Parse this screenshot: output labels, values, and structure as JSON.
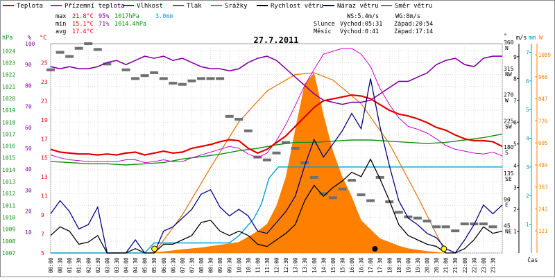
{
  "legend": [
    {
      "label": "Teplota",
      "color": "#e00000"
    },
    {
      "label": "Přízemní teplota",
      "color": "#d000d0"
    },
    {
      "label": "Vlhkost",
      "color": "#8000a0"
    },
    {
      "label": "Tlak",
      "color": "#109010"
    },
    {
      "label": "Srážky",
      "color": "#00a0d0"
    },
    {
      "label": "Rychlost větru",
      "color": "#000000"
    },
    {
      "label": "Náraz větru",
      "color": "#000080"
    },
    {
      "label": "Směr větru",
      "color": "#707070"
    }
  ],
  "stats": {
    "max": {
      "label": "max",
      "temp": "21.8°C",
      "hum": "95%",
      "press": "1017hPa",
      "rain": "3.0mm"
    },
    "min": {
      "label": "min",
      "temp": "15.1°C",
      "hum": "71%",
      "press": "1014.4hPa"
    },
    "avg": {
      "label": "avg",
      "temp": "17.4°C"
    }
  },
  "wind_info": {
    "ws": "WS:5.4m/s",
    "wg": "WG:8m/s"
  },
  "sun": {
    "label": "Slunce",
    "rise": "Východ:05:31",
    "set": "Západ:20:54"
  },
  "moon": {
    "label": "Měsíc",
    "rise": "Východ:0:41",
    "set": "Západ:17:14"
  },
  "title": "27.7.2011",
  "time_axis_label": "čas",
  "colors": {
    "temp": "#e00000",
    "ground": "#d000d0",
    "hum": "#8000a0",
    "press": "#109010",
    "rain": "#00a0d0",
    "wind": "#000000",
    "gust": "#000080",
    "dir": "#707070",
    "solar": "#ff8000",
    "solar_curve": "#e07000"
  },
  "chart_data": {
    "type": "line",
    "title": "27.7.2011",
    "x_unit": "hour",
    "xlim": [
      0,
      24
    ],
    "x_ticks": [
      "00:00",
      "00:30",
      "01:00",
      "01:30",
      "02:00",
      "02:30",
      "03:00",
      "03:30",
      "04:00",
      "04:30",
      "05:00",
      "05:30",
      "06:00",
      "06:30",
      "07:00",
      "07:30",
      "08:00",
      "08:30",
      "09:00",
      "09:30",
      "10:00",
      "10:30",
      "11:00",
      "11:30",
      "12:00",
      "12:30",
      "13:00",
      "13:30",
      "14:00",
      "14:30",
      "15:00",
      "15:30",
      "16:00",
      "16:30",
      "17:00",
      "17:30",
      "18:00",
      "18:30",
      "19:00",
      "19:30",
      "20:00",
      "20:30",
      "21:00",
      "21:30",
      "22:00",
      "22:30",
      "23:00",
      "23:30"
    ],
    "axes": {
      "hpa": {
        "label": "hPa",
        "ticks": [
          1024,
          1023,
          1022,
          1021,
          1020,
          1019,
          1018,
          1017,
          1016,
          1015,
          1014,
          1013,
          1012,
          1011,
          1010,
          1009,
          1008,
          1007
        ],
        "range": [
          1007,
          1024.6
        ]
      },
      "percent": {
        "label": "%",
        "ticks": [
          100,
          90,
          80,
          70,
          60,
          50,
          40,
          30,
          20,
          10
        ],
        "range": [
          0,
          100
        ]
      },
      "celsius": {
        "label": "°C",
        "ticks": [
          25,
          23,
          21,
          19,
          17,
          15,
          13,
          11,
          9,
          7,
          5
        ],
        "range": [
          5,
          27
        ]
      },
      "direction": {
        "label": "°",
        "ticks": [
          "360 N",
          "315 NW",
          "270 W",
          "225 SW",
          "180 S",
          "135 SE",
          "90 E",
          "45 NE"
        ],
        "range": [
          0,
          360
        ]
      },
      "ms": {
        "label": "m/s",
        "ticks": [
          9,
          8,
          7,
          6,
          5,
          4,
          3,
          2,
          1
        ],
        "range": [
          0,
          9.6
        ]
      },
      "rain_mm": {
        "label": "mm",
        "ticks": [
          7,
          6,
          5,
          4,
          3,
          2,
          1
        ],
        "range": [
          0,
          7.3
        ]
      },
      "solar_w": {
        "label": "W",
        "ticks": [
          1089,
          968,
          847,
          726,
          605,
          484,
          363,
          242,
          121
        ],
        "range": [
          0,
          1150
        ]
      }
    },
    "series": [
      {
        "name": "Teplota",
        "axis": "celsius",
        "x": [
          0,
          0.5,
          1,
          1.5,
          2,
          2.5,
          3,
          3.5,
          4,
          4.5,
          5,
          5.5,
          6,
          6.5,
          7,
          7.5,
          8,
          8.5,
          9,
          9.5,
          10,
          10.5,
          11,
          11.5,
          12,
          12.5,
          13,
          13.5,
          14,
          14.5,
          15,
          15.5,
          16,
          16.5,
          17,
          17.5,
          18,
          18.5,
          19,
          19.5,
          20,
          20.5,
          21,
          21.5,
          22,
          22.5,
          23,
          23.5,
          24
        ],
        "y": [
          15.9,
          15.6,
          15.5,
          15.4,
          15.4,
          15.3,
          15.4,
          15.3,
          15.5,
          15.6,
          15.3,
          15.5,
          15.7,
          15.5,
          15.6,
          16.0,
          16.2,
          16.4,
          16.7,
          16.9,
          16.8,
          16.0,
          15.5,
          15.9,
          16.6,
          17.3,
          18.3,
          19.3,
          20.3,
          21.0,
          21.2,
          21.4,
          21.6,
          21.5,
          21.2,
          20.6,
          20.0,
          19.6,
          19.4,
          19.1,
          18.7,
          18.2,
          17.9,
          17.4,
          17.0,
          16.8,
          16.8,
          16.7,
          16.2
        ]
      },
      {
        "name": "Přízemní teplota",
        "axis": "celsius",
        "x": [
          0,
          0.5,
          1,
          1.5,
          2,
          2.5,
          3,
          3.5,
          4,
          4.5,
          5,
          5.5,
          6,
          6.5,
          7,
          7.5,
          8,
          8.5,
          9,
          9.5,
          10,
          10.5,
          11,
          11.5,
          12,
          12.5,
          13,
          13.5,
          14,
          14.5,
          15,
          15.5,
          16,
          16.5,
          17,
          17.5,
          18,
          18.5,
          19,
          19.5,
          20,
          20.5,
          21,
          21.5,
          22,
          22.5,
          23,
          23.5,
          24
        ],
        "y": [
          15.3,
          15.0,
          14.8,
          14.7,
          14.6,
          14.6,
          14.6,
          14.6,
          14.8,
          14.8,
          14.5,
          14.6,
          14.8,
          14.6,
          14.6,
          15.0,
          15.3,
          15.6,
          15.9,
          16.2,
          16.0,
          15.4,
          15.0,
          15.5,
          16.8,
          18.5,
          20.5,
          22.6,
          24.3,
          25.9,
          26.2,
          26.5,
          26.5,
          25.9,
          24.6,
          22.3,
          20.6,
          19.2,
          18.3,
          18.0,
          17.6,
          17.0,
          16.3,
          15.9,
          15.7,
          15.5,
          15.4,
          15.6,
          15.2
        ]
      },
      {
        "name": "Vlhkost",
        "axis": "percent",
        "x": [
          0,
          0.5,
          1,
          1.5,
          2,
          2.5,
          3,
          3.5,
          4,
          4.5,
          5,
          5.5,
          6,
          6.5,
          7,
          7.5,
          8,
          8.5,
          9,
          9.5,
          10,
          10.5,
          11,
          11.5,
          12,
          12.5,
          13,
          13.5,
          14,
          14.5,
          15,
          15.5,
          16,
          16.5,
          17,
          17.5,
          18,
          18.5,
          19,
          19.5,
          20,
          20.5,
          21,
          21.5,
          22,
          22.5,
          23,
          23.5,
          24
        ],
        "y": [
          89,
          88,
          89,
          88,
          88,
          89,
          91,
          92,
          90,
          92,
          94,
          93,
          94,
          92,
          93,
          91,
          89,
          88,
          88,
          87,
          88,
          91,
          93,
          94,
          92,
          88,
          84,
          80,
          76,
          73,
          72,
          71,
          72,
          72,
          73,
          76,
          79,
          82,
          82,
          84,
          86,
          90,
          92,
          93,
          90,
          89,
          93,
          94,
          94
        ]
      },
      {
        "name": "Tlak",
        "axis": "hpa",
        "x": [
          0,
          1,
          2,
          3,
          4,
          5,
          6,
          7,
          8,
          9,
          10,
          11,
          12,
          13,
          14,
          15,
          16,
          17,
          18,
          19,
          20,
          21,
          22,
          23,
          24
        ],
        "y": [
          1014.7,
          1014.6,
          1014.5,
          1014.5,
          1014.4,
          1014.5,
          1014.6,
          1014.9,
          1015.1,
          1015.3,
          1015.6,
          1015.8,
          1016.1,
          1016.3,
          1016.3,
          1016.4,
          1016.5,
          1016.5,
          1016.4,
          1016.3,
          1016.2,
          1016.3,
          1016.5,
          1016.7,
          1017.0
        ]
      },
      {
        "name": "Srážky",
        "axis": "rain_mm",
        "x": [
          0,
          5,
          5.5,
          9.5,
          10,
          10.4,
          10.8,
          11.2,
          11.6,
          12.1,
          12.2,
          13,
          14,
          15,
          16,
          17,
          18,
          19,
          20,
          21,
          22,
          23,
          24
        ],
        "y": [
          0,
          0,
          0.35,
          0.35,
          0.6,
          0.9,
          1.2,
          1.7,
          2.6,
          3.0,
          3.0,
          3.0,
          3.0,
          3.0,
          3.0,
          3.0,
          3.0,
          3.0,
          3.0,
          3.0,
          3.0,
          3.0,
          3.0
        ]
      },
      {
        "name": "Rychlost větru",
        "axis": "ms",
        "x": [
          0,
          0.5,
          1,
          1.5,
          2,
          2.5,
          3,
          3.5,
          4,
          4.5,
          5,
          5.5,
          6,
          6.5,
          7,
          7.5,
          8,
          8.5,
          9,
          9.5,
          10,
          10.5,
          11,
          11.5,
          12,
          12.5,
          13,
          13.5,
          14,
          14.5,
          15,
          15.5,
          16,
          16.5,
          17,
          17.5,
          18,
          18.5,
          19,
          19.5,
          20,
          20.5,
          21,
          21.5,
          22,
          22.5,
          23,
          23.5,
          24
        ],
        "y": [
          0.8,
          1.2,
          1.0,
          0.4,
          0.5,
          0.8,
          0.0,
          0.0,
          0.0,
          0.2,
          0.0,
          0.0,
          0.4,
          0.4,
          0.6,
          0.8,
          1.4,
          1.5,
          1.0,
          0.8,
          1.0,
          0.8,
          0.4,
          0.3,
          0.6,
          0.9,
          1.3,
          2.4,
          3.1,
          2.6,
          3.0,
          3.3,
          3.7,
          3.5,
          4.3,
          3.4,
          2.4,
          1.3,
          0.8,
          0.6,
          0.4,
          0.3,
          0.0,
          0.0,
          0.2,
          0.6,
          1.2,
          0.9,
          1.0
        ]
      },
      {
        "name": "Náraz větru",
        "axis": "ms",
        "x": [
          0,
          0.5,
          1,
          1.5,
          2,
          2.5,
          3,
          3.5,
          4,
          4.5,
          5,
          5.5,
          6,
          6.5,
          7,
          7.5,
          8,
          8.5,
          9,
          9.5,
          10,
          10.5,
          11,
          11.5,
          12,
          12.5,
          13,
          13.5,
          14,
          14.5,
          15,
          15.5,
          16,
          16.5,
          17,
          17.5,
          18,
          18.5,
          19,
          19.5,
          20,
          20.5,
          21,
          21.5,
          22,
          22.5,
          23,
          23.5,
          24
        ],
        "y": [
          1.8,
          2.4,
          1.9,
          1.1,
          1.3,
          2.1,
          0.0,
          0.0,
          0.0,
          0.6,
          0.0,
          0.0,
          1.0,
          1.2,
          1.6,
          2.0,
          2.7,
          2.9,
          2.1,
          1.7,
          2.0,
          1.7,
          1.0,
          0.9,
          1.4,
          1.9,
          2.6,
          4.0,
          5.2,
          4.4,
          5.0,
          5.6,
          6.4,
          5.7,
          8.0,
          5.8,
          4.0,
          2.4,
          1.6,
          1.3,
          0.9,
          0.7,
          0.2,
          0.0,
          0.6,
          1.3,
          2.2,
          1.8,
          2.2
        ]
      },
      {
        "name": "Směr větru",
        "axis": "direction",
        "x": [
          0,
          0.5,
          1,
          1.5,
          2,
          2.5,
          3,
          4,
          4.5,
          5,
          5.5,
          6,
          6.5,
          7,
          7.5,
          8,
          8.5,
          9,
          9.5,
          10,
          10.5,
          11,
          11.5,
          12,
          12.5,
          13,
          13.5,
          14,
          14.5,
          15,
          15.5,
          16,
          16.5,
          17,
          17.5,
          18,
          18.5,
          19,
          19.5,
          20,
          20.5,
          21,
          21.5,
          22,
          22.5,
          23,
          23.5
        ],
        "y": [
          315,
          345,
          338,
          352,
          360,
          350,
          325,
          315,
          300,
          305,
          310,
          300,
          292,
          290,
          296,
          300,
          300,
          300,
          235,
          230,
          210,
          165,
          160,
          172,
          190,
          180,
          155,
          130,
          102,
          95,
          110,
          125,
          100,
          90,
          130,
          88,
          70,
          62,
          60,
          55,
          45,
          45,
          38,
          50,
          50,
          50,
          45
        ]
      },
      {
        "name": "solar",
        "axis": "solar_w",
        "x": [
          0,
          5,
          6,
          7,
          8,
          9,
          10,
          10.5,
          11,
          11.5,
          12,
          12.5,
          13,
          13.5,
          14,
          14.5,
          15,
          15.5,
          16,
          16.5,
          17,
          17.5,
          18,
          18.5,
          19,
          20,
          21,
          24
        ],
        "y": [
          0,
          0,
          8,
          20,
          30,
          45,
          60,
          90,
          120,
          160,
          260,
          420,
          680,
          930,
          990,
          760,
          560,
          420,
          310,
          180,
          130,
          80,
          60,
          40,
          25,
          10,
          0,
          0
        ]
      },
      {
        "name": "solar_clear_sky",
        "axis": "solar_w",
        "x": [
          5.5,
          7,
          8.5,
          10,
          11.5,
          13,
          14,
          15,
          16.5,
          18,
          19.5,
          21
        ],
        "y": [
          0,
          210,
          470,
          720,
          890,
          980,
          990,
          950,
          820,
          600,
          310,
          0
        ]
      }
    ]
  }
}
